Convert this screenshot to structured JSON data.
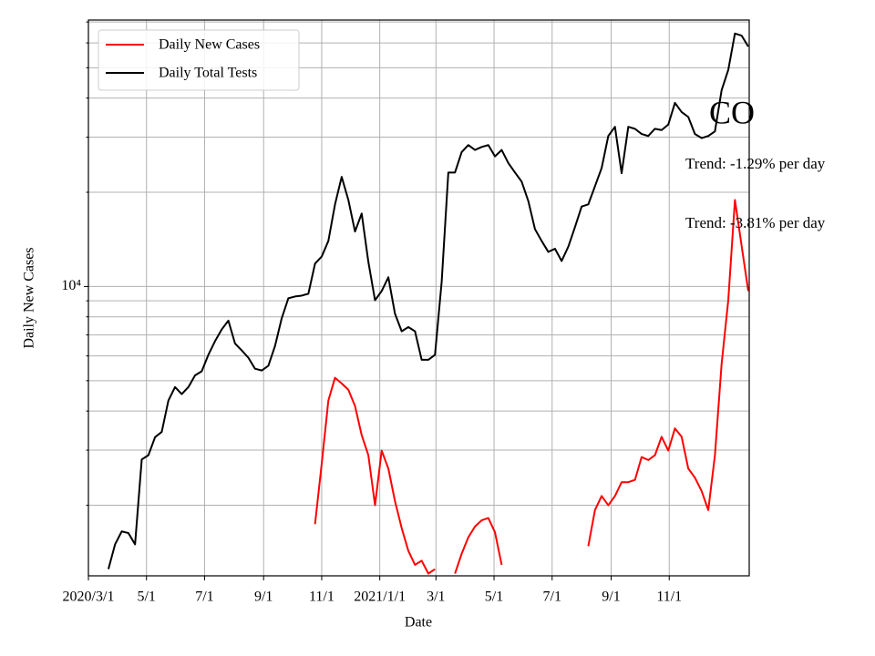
{
  "chart_data": {
    "type": "line",
    "xlabel": "Date",
    "ylabel": "Daily New Cases",
    "log_y": true,
    "grid": true,
    "legend": "upper left",
    "xlim": [
      "2020-03-01",
      "2022-01-24"
    ],
    "ylim": [
      1190,
      71000
    ],
    "yticks": [
      {
        "value": 10000,
        "label": "10⁴"
      }
    ],
    "minor_yticks": [
      2000,
      3000,
      4000,
      5000,
      6000,
      7000,
      8000,
      9000,
      20000,
      30000,
      40000,
      50000,
      60000,
      70000
    ],
    "xticks": [
      {
        "value": "2020-03-01",
        "label": "2020/3/1"
      },
      {
        "value": "2020-05-01",
        "label": "5/1"
      },
      {
        "value": "2020-07-01",
        "label": "7/1"
      },
      {
        "value": "2020-09-01",
        "label": "9/1"
      },
      {
        "value": "2020-11-01",
        "label": "11/1"
      },
      {
        "value": "2021-01-01",
        "label": "2021/1/1"
      },
      {
        "value": "2021-03-01",
        "label": "3/1"
      },
      {
        "value": "2021-05-01",
        "label": "5/1"
      },
      {
        "value": "2021-07-01",
        "label": "7/1"
      },
      {
        "value": "2021-09-01",
        "label": "9/1"
      },
      {
        "value": "2021-11-01",
        "label": "11/1"
      }
    ],
    "x": [
      "2020-03-22",
      "2020-03-29",
      "2020-04-05",
      "2020-04-12",
      "2020-04-19",
      "2020-04-26",
      "2020-05-03",
      "2020-05-10",
      "2020-05-17",
      "2020-05-24",
      "2020-05-31",
      "2020-06-07",
      "2020-06-14",
      "2020-06-21",
      "2020-06-28",
      "2020-07-05",
      "2020-07-12",
      "2020-07-19",
      "2020-07-26",
      "2020-08-02",
      "2020-08-09",
      "2020-08-16",
      "2020-08-23",
      "2020-08-30",
      "2020-09-06",
      "2020-09-13",
      "2020-09-20",
      "2020-09-27",
      "2020-10-04",
      "2020-10-11",
      "2020-10-18",
      "2020-10-25",
      "2020-11-01",
      "2020-11-08",
      "2020-11-15",
      "2020-11-22",
      "2020-11-29",
      "2020-12-06",
      "2020-12-13",
      "2020-12-20",
      "2020-12-27",
      "2021-01-03",
      "2021-01-10",
      "2021-01-17",
      "2021-01-24",
      "2021-01-31",
      "2021-02-07",
      "2021-02-14",
      "2021-02-21",
      "2021-02-28",
      "2021-03-07",
      "2021-03-14",
      "2021-03-21",
      "2021-03-28",
      "2021-04-04",
      "2021-04-11",
      "2021-04-18",
      "2021-04-25",
      "2021-05-02",
      "2021-05-09",
      "2021-05-16",
      "2021-05-23",
      "2021-05-30",
      "2021-06-06",
      "2021-06-13",
      "2021-06-20",
      "2021-06-27",
      "2021-07-04",
      "2021-07-11",
      "2021-07-18",
      "2021-07-25",
      "2021-08-01",
      "2021-08-08",
      "2021-08-15",
      "2021-08-22",
      "2021-08-29",
      "2021-09-05",
      "2021-09-12",
      "2021-09-19",
      "2021-09-26",
      "2021-10-03",
      "2021-10-10",
      "2021-10-17",
      "2021-10-24",
      "2021-10-31",
      "2021-11-07",
      "2021-11-14",
      "2021-11-21",
      "2021-11-28",
      "2021-12-05",
      "2021-12-12",
      "2021-12-19",
      "2021-12-26",
      "2022-01-02",
      "2022-01-09",
      "2022-01-16",
      "2022-01-23"
    ],
    "series": [
      {
        "name": "Daily New Cases",
        "color": "#ff0000",
        "values": [
          null,
          null,
          null,
          null,
          null,
          null,
          null,
          null,
          null,
          null,
          null,
          null,
          null,
          null,
          null,
          null,
          null,
          null,
          null,
          null,
          null,
          null,
          null,
          null,
          null,
          null,
          null,
          null,
          null,
          null,
          null,
          1740,
          2710,
          4320,
          5110,
          4900,
          4680,
          4150,
          3350,
          2890,
          2000,
          2990,
          2620,
          2060,
          1690,
          1430,
          1290,
          1330,
          1210,
          1250,
          null,
          null,
          1210,
          1400,
          1580,
          1710,
          1790,
          1820,
          1640,
          1290,
          null,
          null,
          null,
          null,
          null,
          null,
          null,
          null,
          null,
          null,
          null,
          null,
          1480,
          1930,
          2140,
          2000,
          2140,
          2370,
          2370,
          2410,
          2850,
          2790,
          2890,
          3310,
          2990,
          3520,
          3310,
          2620,
          2450,
          2220,
          1930,
          2890,
          5650,
          9040,
          18900,
          13500,
          9670
        ]
      },
      {
        "name": "Daily Total Tests",
        "color": "#000000",
        "values": [
          1250,
          1500,
          1650,
          1630,
          1500,
          2800,
          2890,
          3300,
          3430,
          4320,
          4770,
          4530,
          4770,
          5200,
          5360,
          6050,
          6690,
          7290,
          7780,
          6570,
          6250,
          5920,
          5460,
          5390,
          5580,
          6460,
          7910,
          9170,
          9290,
          9350,
          9480,
          11830,
          12460,
          13980,
          18300,
          22400,
          18900,
          14980,
          17100,
          11990,
          9040,
          9670,
          10700,
          8180,
          7190,
          7420,
          7190,
          5830,
          5830,
          6050,
          10340,
          23130,
          23130,
          26870,
          28300,
          27300,
          27900,
          28300,
          26050,
          27300,
          24800,
          23130,
          21630,
          18750,
          15250,
          13980,
          12900,
          13200,
          12060,
          13400,
          15480,
          18000,
          18300,
          20900,
          23900,
          30260,
          32370,
          23000,
          32370,
          31900,
          30700,
          30260,
          31900,
          31600,
          32900,
          38600,
          36100,
          34800,
          30700,
          29800,
          30260,
          31300,
          42360,
          49200,
          64300,
          63340,
          58400
        ]
      }
    ],
    "annotations": [
      "CO",
      "Trend: -1.29% per day",
      "Trend: -3.81% per day"
    ]
  }
}
